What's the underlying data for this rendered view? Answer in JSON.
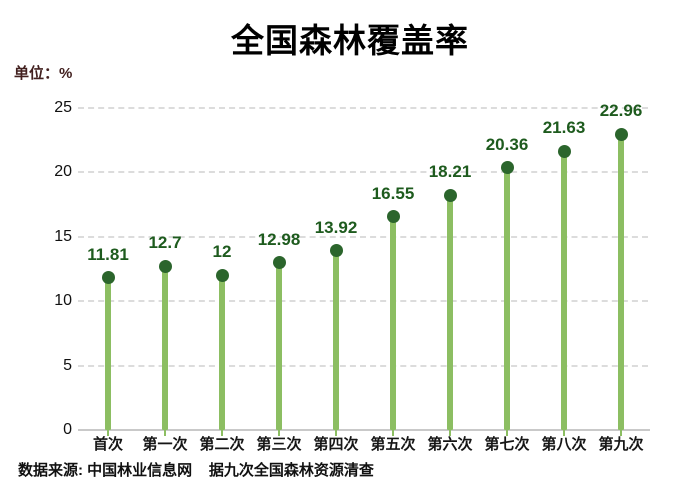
{
  "title": "全国森林覆盖率",
  "unit_label": "单位：%",
  "footer": "数据来源: 中国林业信息网    据九次全国森林资源清查",
  "chart_data": {
    "type": "bar",
    "subtype": "lollipop",
    "title": "全国森林覆盖率",
    "unit": "单位：%",
    "categories": [
      "首次",
      "第一次",
      "第二次",
      "第三次",
      "第四次",
      "第五次",
      "第六次",
      "第七次",
      "第八次",
      "第九次"
    ],
    "values": [
      11.81,
      12.7,
      12,
      12.98,
      13.92,
      16.55,
      18.21,
      20.36,
      21.63,
      22.96
    ],
    "value_labels": [
      "11.81",
      "12.7",
      "12",
      "12.98",
      "13.92",
      "16.55",
      "18.21",
      "20.36",
      "21.63",
      "22.96"
    ],
    "xlabel": "",
    "ylabel": "%",
    "ylim": [
      0,
      25
    ],
    "yticks": [
      0,
      5,
      10,
      15,
      20,
      25
    ],
    "grid": "horizontal-dashed",
    "legend": "none",
    "source_note": "数据来源: 中国林业信息网    据九次全国森林资源清查",
    "colors": {
      "stem": "#8cbe62",
      "dot": "#2b652c",
      "value_label": "#1e5b1e",
      "gridline": "#dcdcdc",
      "axis_line": "#c9c9c9",
      "title": "#000000",
      "unit_label": "#42201f",
      "tick_label": "#111111"
    }
  }
}
